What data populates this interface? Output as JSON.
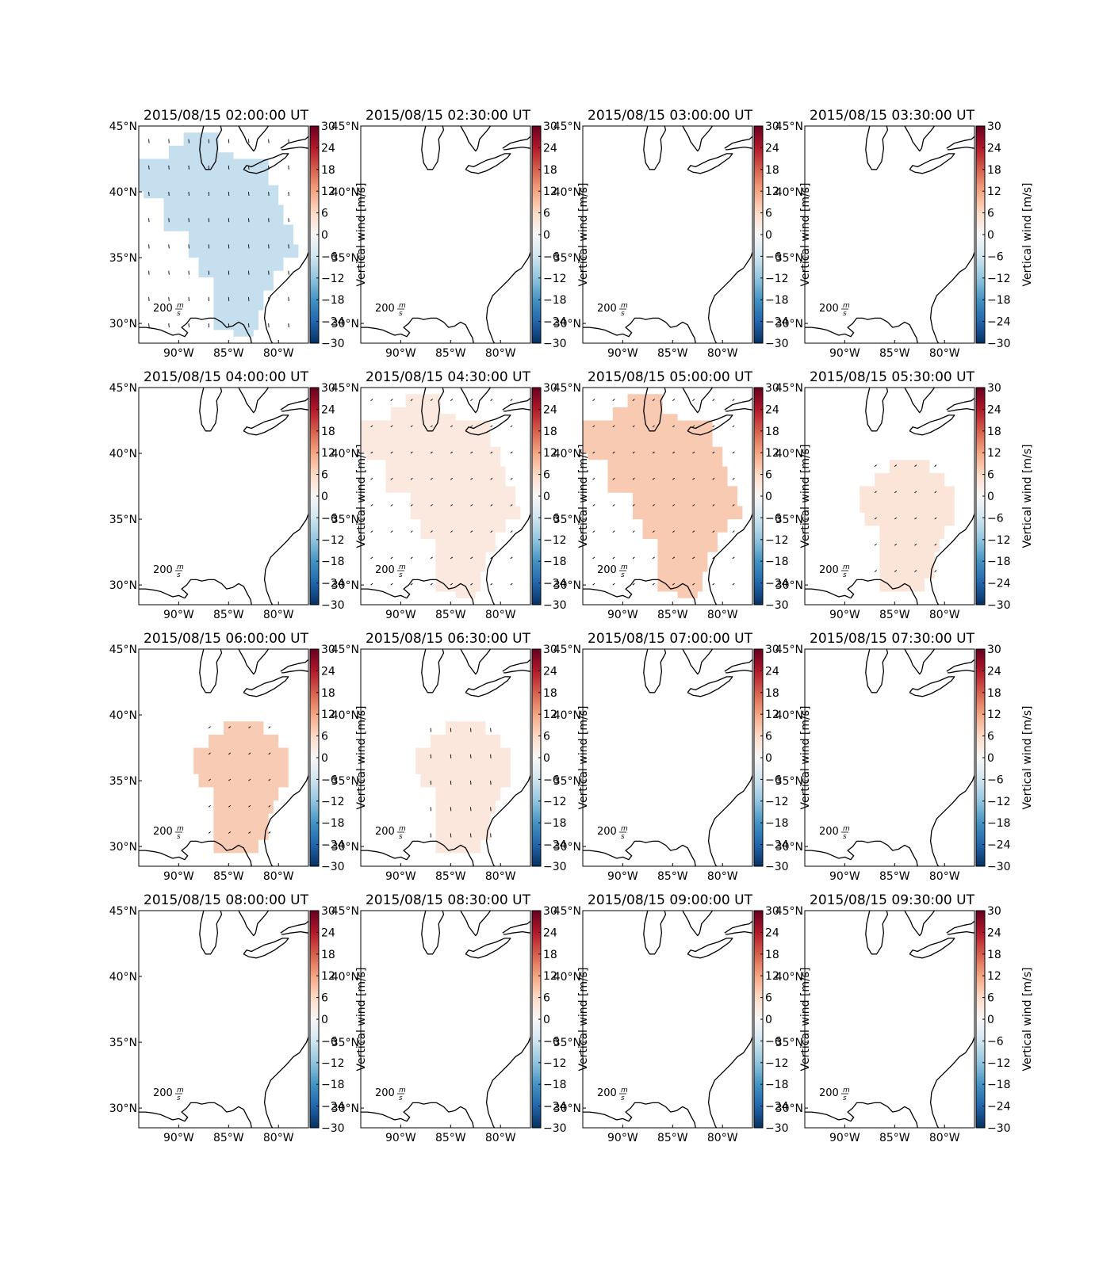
{
  "figure": {
    "colorbar_label": "Vertical wind [m/s]",
    "colorbar_ticks": [
      "30",
      "24",
      "18",
      "12",
      "6",
      "0",
      "−6",
      "−12",
      "−18",
      "−24",
      "−30"
    ],
    "lat_labels": [
      "45°N",
      "40°N",
      "35°N",
      "30°N"
    ],
    "lon_labels": [
      "90°W",
      "85°W",
      "80°W"
    ],
    "quiver_key_value": "200",
    "quiver_key_unit_num": "m",
    "quiver_key_unit_den": "s"
  },
  "chart_data": {
    "type": "heatmap",
    "colormap": "RdBu_r",
    "vmin": -30,
    "vmax": 30,
    "lon_range": [
      -94,
      -77
    ],
    "lat_range": [
      28.5,
      45
    ],
    "panels": [
      {
        "title": "2015/08/15 02:00:00 UT",
        "value": -5,
        "region": "A",
        "fill": "#c6dfee"
      },
      {
        "title": "2015/08/15 02:30:00 UT",
        "value": 0,
        "region": "none",
        "fill": ""
      },
      {
        "title": "2015/08/15 03:00:00 UT",
        "value": 0,
        "region": "none",
        "fill": ""
      },
      {
        "title": "2015/08/15 03:30:00 UT",
        "value": 0,
        "region": "none",
        "fill": ""
      },
      {
        "title": "2015/08/15 04:00:00 UT",
        "value": 0,
        "region": "none",
        "fill": ""
      },
      {
        "title": "2015/08/15 04:30:00 UT",
        "value": 3,
        "region": "A",
        "fill": "#fbe8de"
      },
      {
        "title": "2015/08/15 05:00:00 UT",
        "value": 9,
        "region": "A",
        "fill": "#f8cab1"
      },
      {
        "title": "2015/08/15 05:30:00 UT",
        "value": 3,
        "region": "B",
        "fill": "#fbe5d9"
      },
      {
        "title": "2015/08/15 06:00:00 UT",
        "value": 8,
        "region": "B",
        "fill": "#f8ccb4"
      },
      {
        "title": "2015/08/15 06:30:00 UT",
        "value": 3,
        "region": "B",
        "fill": "#fbe7dc"
      },
      {
        "title": "2015/08/15 07:00:00 UT",
        "value": 0,
        "region": "none",
        "fill": ""
      },
      {
        "title": "2015/08/15 07:30:00 UT",
        "value": 0,
        "region": "none",
        "fill": ""
      },
      {
        "title": "2015/08/15 08:00:00 UT",
        "value": 0,
        "region": "none",
        "fill": ""
      },
      {
        "title": "2015/08/15 08:30:00 UT",
        "value": 0,
        "region": "none",
        "fill": ""
      },
      {
        "title": "2015/08/15 09:00:00 UT",
        "value": 0,
        "region": "none",
        "fill": ""
      },
      {
        "title": "2015/08/15 09:30:00 UT",
        "value": 0,
        "region": "none",
        "fill": ""
      }
    ]
  }
}
